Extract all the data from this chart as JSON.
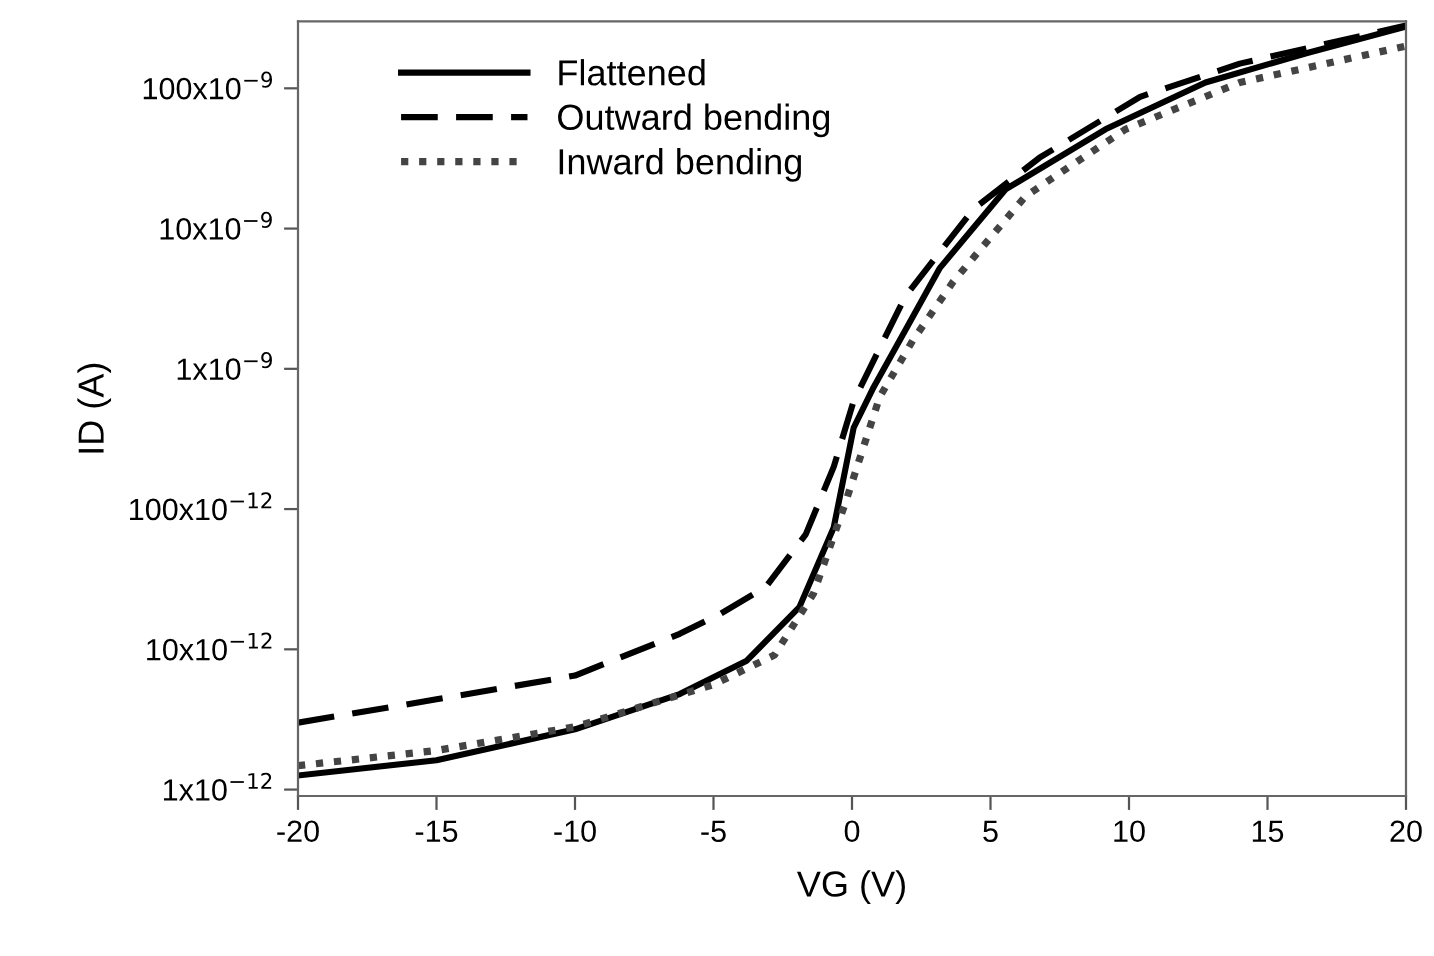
{
  "chart_data": {
    "type": "line",
    "xlabel": "VG (V)",
    "ylabel": "ID (A)",
    "log": "y",
    "grid": false,
    "legend": "top left",
    "marker": "none",
    "xlim": [
      -20,
      20
    ],
    "xticks": [
      -20,
      -15,
      -10,
      -5,
      0,
      5,
      10,
      15,
      20
    ],
    "ylim": [
      9e-13,
      3e-07
    ],
    "yticks": [
      {
        "value": 1e-12,
        "label": "1x10$^{−12}$"
      },
      {
        "value": 1e-11,
        "label": "10x10$^{−12}$"
      },
      {
        "value": 1e-10,
        "label": "100x10$^{−12}$"
      },
      {
        "value": 1e-09,
        "label": "1x10$^{−9}$"
      },
      {
        "value": 1e-08,
        "label": "10x10$^{−9}$"
      },
      {
        "value": 1e-07,
        "label": "100x10$^{−9}$"
      }
    ],
    "series": [
      {
        "name": "Flattened",
        "color": "#000000",
        "line_style": "solid",
        "x": [
          -20,
          -15,
          -10,
          -6.22,
          -3.8,
          -1.9,
          -0.66,
          0.06,
          0.78,
          2.0,
          3.16,
          5.54,
          9.15,
          12.76,
          16.4,
          20
        ],
        "values": [
          1.26e-12,
          1.62e-12,
          2.69e-12,
          4.8e-12,
          8.3e-12,
          2e-11,
          7.4e-11,
          3.8e-10,
          7.4e-10,
          2e-09,
          5.2e-09,
          1.9e-08,
          5.1e-08,
          1.1e-07,
          1.78e-07,
          2.75e-07
        ]
      },
      {
        "name": "Outward bending",
        "color": "#000000",
        "line_style": "dashed",
        "x": [
          -20,
          -15,
          -10,
          -6.22,
          -4.78,
          -3.1,
          -1.67,
          -0.66,
          0.06,
          1.93,
          4.39,
          6.77,
          10.4,
          14.0,
          20
        ],
        "values": [
          3e-12,
          4.4e-12,
          6.5e-12,
          1.29e-11,
          1.78e-11,
          2.8e-11,
          6.6e-11,
          2e-10,
          5.9e-10,
          3.3e-09,
          1.38e-08,
          3.2e-08,
          8.7e-08,
          1.5e-07,
          2.8e-07
        ]
      },
      {
        "name": "Inward bending",
        "color": "#444444",
        "line_style": "dotted",
        "x": [
          -20,
          -15,
          -10,
          -5,
          -2.8,
          -1.39,
          -0.23,
          1.0,
          2.2,
          3.66,
          6.26,
          9.87,
          14.0,
          20
        ],
        "values": [
          1.48e-12,
          1.9e-12,
          2.8e-12,
          5.6e-12,
          9.1e-12,
          2.5e-11,
          1.12e-10,
          6.3e-10,
          1.6e-09,
          4.2e-09,
          1.7e-08,
          5.1e-08,
          1.1e-07,
          2e-07
        ]
      }
    ]
  }
}
